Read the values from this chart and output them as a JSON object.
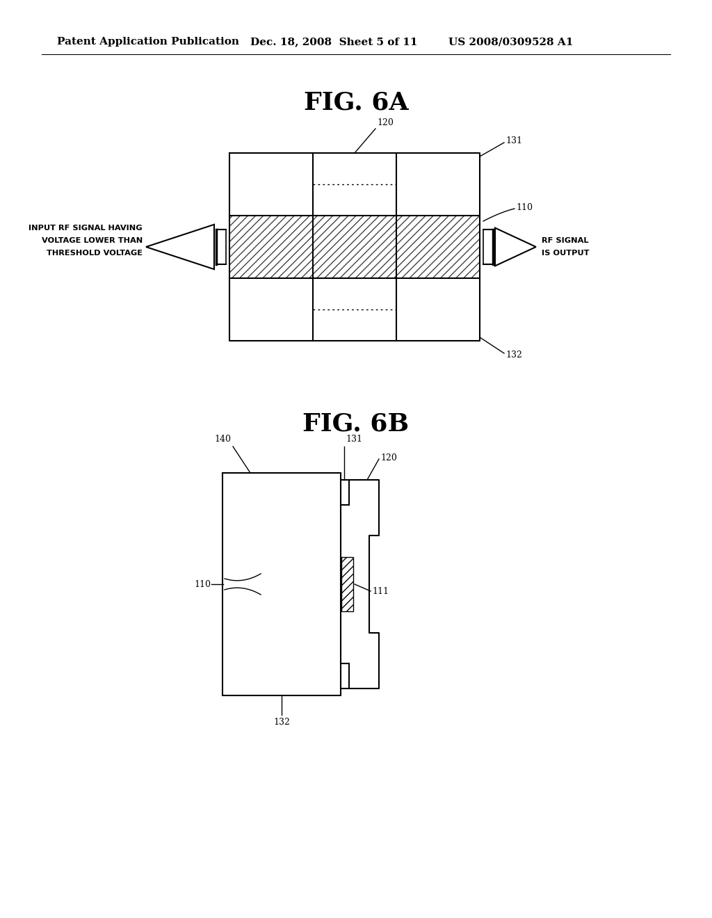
{
  "bg_color": "#ffffff",
  "header_text": "Patent Application Publication",
  "header_date": "Dec. 18, 2008  Sheet 5 of 11",
  "header_patent": "US 2008/0309528 A1",
  "fig6a_title": "FIG. 6A",
  "fig6b_title": "FIG. 6B",
  "line_color": "#000000",
  "label_fontsize": 9,
  "title_fontsize": 26,
  "header_fontsize": 11
}
